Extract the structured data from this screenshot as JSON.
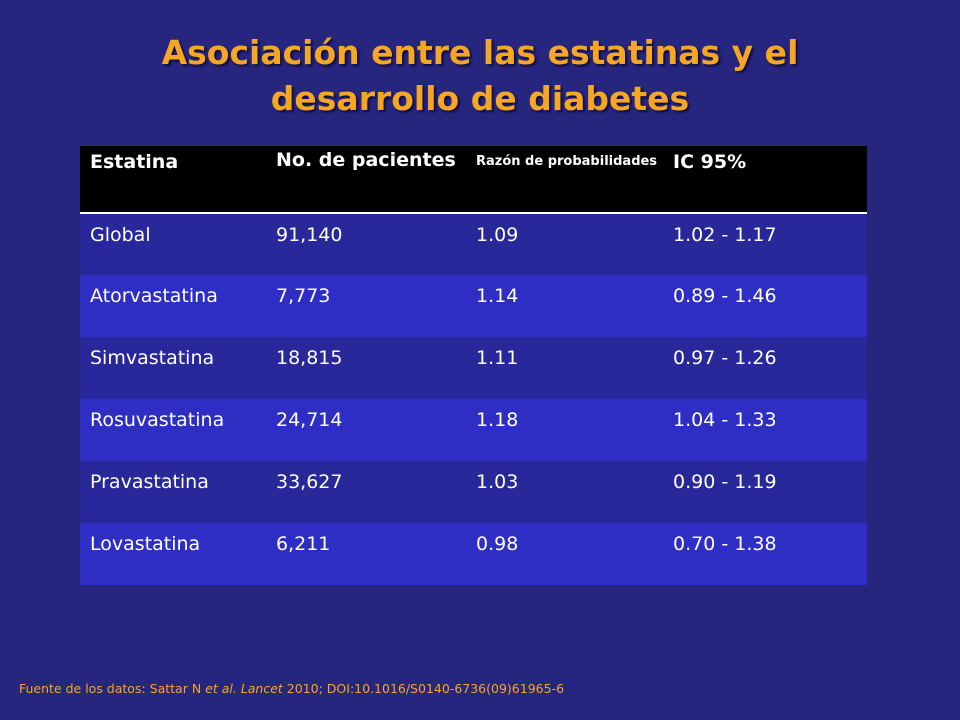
{
  "title": {
    "line1": "Asociación entre las estatinas y el",
    "line2": "desarrollo de diabetes"
  },
  "table": {
    "headers": [
      "Estatina",
      "No. de pacientes",
      "Razón de probabilidades",
      "IC 95%"
    ],
    "rows": [
      [
        "Global",
        "91,140",
        "1.09",
        "1.02 - 1.17"
      ],
      [
        "Atorvastatina",
        "7,773",
        "1.14",
        "0.89 - 1.46"
      ],
      [
        "Simvastatina",
        "18,815",
        "1.11",
        "0.97 - 1.26"
      ],
      [
        "Rosuvastatina",
        "24,714",
        "1.18",
        "1.04 - 1.33"
      ],
      [
        "Pravastatina",
        "33,627",
        "1.03",
        "0.90 - 1.19"
      ],
      [
        "Lovastatina",
        "6,211",
        "0.98",
        "0.70 - 1.38"
      ]
    ]
  },
  "source": {
    "prefix": "Fuente de los datos: Sattar N ",
    "etal": "et al.",
    "space": " ",
    "journal": "Lancet",
    "suffix": " 2010; DOI:10.1016/S0140-6736(09)61965-6"
  },
  "colors": {
    "background": "#26267f",
    "title": "#f5a623",
    "header_bg": "#000000",
    "row_odd": "#28289a",
    "row_even": "#2e2ec4"
  }
}
